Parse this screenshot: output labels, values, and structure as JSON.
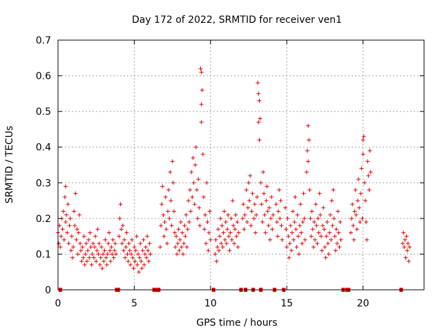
{
  "chart_data": {
    "type": "scatter",
    "title": "Day 172 of 2022, SRMTID for receiver ven1",
    "xlabel": "GPS time / hours",
    "ylabel": "SRMTID / TECUs",
    "xlim": [
      0,
      24
    ],
    "ylim": [
      0,
      0.7
    ],
    "xticks": [
      0,
      5,
      10,
      15,
      20
    ],
    "yticks": [
      0,
      0.1,
      0.2,
      0.3,
      0.4,
      0.5,
      0.6,
      0.7
    ],
    "xtick_labels": [
      "0",
      "5",
      "10",
      "15",
      "20"
    ],
    "ytick_labels": [
      "0",
      "0.1",
      "0.2",
      "0.3",
      "0.4",
      "0.5",
      "0.6",
      "0.7"
    ],
    "grid": true,
    "marker": "plus",
    "color": "#e00000",
    "zero_markers_x": [
      0.15,
      3.85,
      3.95,
      6.3,
      6.45,
      6.6,
      10.2,
      12.0,
      12.3,
      12.8,
      13.3,
      14.2,
      14.8,
      18.7,
      18.95,
      19.05,
      22.5
    ],
    "points": [
      [
        0.0,
        0.16
      ],
      [
        0.05,
        0.13
      ],
      [
        0.1,
        0.18
      ],
      [
        0.15,
        0.12
      ],
      [
        0.2,
        0.15
      ],
      [
        0.25,
        0.2
      ],
      [
        0.3,
        0.17
      ],
      [
        0.35,
        0.22
      ],
      [
        0.4,
        0.14
      ],
      [
        0.45,
        0.26
      ],
      [
        0.5,
        0.29
      ],
      [
        0.5,
        0.19
      ],
      [
        0.55,
        0.21
      ],
      [
        0.6,
        0.16
      ],
      [
        0.65,
        0.24
      ],
      [
        0.7,
        0.13
      ],
      [
        0.75,
        0.18
      ],
      [
        0.8,
        0.2
      ],
      [
        0.85,
        0.11
      ],
      [
        0.9,
        0.15
      ],
      [
        0.95,
        0.09
      ],
      [
        1.0,
        0.12
      ],
      [
        1.05,
        0.22
      ],
      [
        1.1,
        0.18
      ],
      [
        1.15,
        0.27
      ],
      [
        1.2,
        0.14
      ],
      [
        1.25,
        0.17
      ],
      [
        1.3,
        0.1
      ],
      [
        1.35,
        0.16
      ],
      [
        1.4,
        0.21
      ],
      [
        1.45,
        0.13
      ],
      [
        1.5,
        0.11
      ],
      [
        1.55,
        0.08
      ],
      [
        1.6,
        0.12
      ],
      [
        1.65,
        0.09
      ],
      [
        1.7,
        0.15
      ],
      [
        1.75,
        0.07
      ],
      [
        1.8,
        0.1
      ],
      [
        1.85,
        0.13
      ],
      [
        1.9,
        0.08
      ],
      [
        1.95,
        0.11
      ],
      [
        2.0,
        0.14
      ],
      [
        2.05,
        0.09
      ],
      [
        2.1,
        0.16
      ],
      [
        2.15,
        0.12
      ],
      [
        2.2,
        0.07
      ],
      [
        2.25,
        0.1
      ],
      [
        2.3,
        0.13
      ],
      [
        2.35,
        0.09
      ],
      [
        2.4,
        0.12
      ],
      [
        2.45,
        0.15
      ],
      [
        2.5,
        0.08
      ],
      [
        2.55,
        0.11
      ],
      [
        2.6,
        0.17
      ],
      [
        2.65,
        0.1
      ],
      [
        2.7,
        0.13
      ],
      [
        2.75,
        0.07
      ],
      [
        2.8,
        0.09
      ],
      [
        2.85,
        0.12
      ],
      [
        2.9,
        0.06
      ],
      [
        2.95,
        0.1
      ],
      [
        3.0,
        0.08
      ],
      [
        3.05,
        0.11
      ],
      [
        3.1,
        0.14
      ],
      [
        3.15,
        0.09
      ],
      [
        3.2,
        0.07
      ],
      [
        3.25,
        0.1
      ],
      [
        3.3,
        0.13
      ],
      [
        3.35,
        0.16
      ],
      [
        3.4,
        0.11
      ],
      [
        3.45,
        0.08
      ],
      [
        3.5,
        0.12
      ],
      [
        3.55,
        0.1
      ],
      [
        3.6,
        0.14
      ],
      [
        3.65,
        0.09
      ],
      [
        3.7,
        0.11
      ],
      [
        3.75,
        0.13
      ],
      [
        3.8,
        0.1
      ],
      [
        4.0,
        0.15
      ],
      [
        4.05,
        0.2
      ],
      [
        4.1,
        0.24
      ],
      [
        4.15,
        0.17
      ],
      [
        4.2,
        0.13
      ],
      [
        4.25,
        0.18
      ],
      [
        4.3,
        0.11
      ],
      [
        4.35,
        0.14
      ],
      [
        4.4,
        0.09
      ],
      [
        4.45,
        0.12
      ],
      [
        4.5,
        0.16
      ],
      [
        4.55,
        0.1
      ],
      [
        4.6,
        0.08
      ],
      [
        4.65,
        0.13
      ],
      [
        4.7,
        0.11
      ],
      [
        4.75,
        0.07
      ],
      [
        4.8,
        0.1
      ],
      [
        4.85,
        0.14
      ],
      [
        4.9,
        0.09
      ],
      [
        4.95,
        0.06
      ],
      [
        5.0,
        0.12
      ],
      [
        5.05,
        0.08
      ],
      [
        5.1,
        0.11
      ],
      [
        5.15,
        0.15
      ],
      [
        5.2,
        0.07
      ],
      [
        5.25,
        0.1
      ],
      [
        5.3,
        0.05
      ],
      [
        5.35,
        0.09
      ],
      [
        5.4,
        0.13
      ],
      [
        5.45,
        0.08
      ],
      [
        5.5,
        0.06
      ],
      [
        5.55,
        0.11
      ],
      [
        5.6,
        0.14
      ],
      [
        5.65,
        0.07
      ],
      [
        5.7,
        0.1
      ],
      [
        5.75,
        0.12
      ],
      [
        5.8,
        0.09
      ],
      [
        5.85,
        0.15
      ],
      [
        5.9,
        0.11
      ],
      [
        5.95,
        0.08
      ],
      [
        6.0,
        0.13
      ],
      [
        6.05,
        0.1
      ],
      [
        6.7,
        0.12
      ],
      [
        6.75,
        0.18
      ],
      [
        6.8,
        0.24
      ],
      [
        6.85,
        0.29
      ],
      [
        6.9,
        0.21
      ],
      [
        6.95,
        0.15
      ],
      [
        7.0,
        0.19
      ],
      [
        7.05,
        0.26
      ],
      [
        7.1,
        0.17
      ],
      [
        7.15,
        0.13
      ],
      [
        7.2,
        0.22
      ],
      [
        7.25,
        0.28
      ],
      [
        7.3,
        0.2
      ],
      [
        7.35,
        0.33
      ],
      [
        7.4,
        0.25
      ],
      [
        7.45,
        0.18
      ],
      [
        7.5,
        0.36
      ],
      [
        7.55,
        0.3
      ],
      [
        7.6,
        0.22
      ],
      [
        7.65,
        0.16
      ],
      [
        7.7,
        0.12
      ],
      [
        7.75,
        0.15
      ],
      [
        7.8,
        0.1
      ],
      [
        7.85,
        0.13
      ],
      [
        7.9,
        0.17
      ],
      [
        7.95,
        0.11
      ],
      [
        8.0,
        0.14
      ],
      [
        8.05,
        0.19
      ],
      [
        8.1,
        0.12
      ],
      [
        8.15,
        0.16
      ],
      [
        8.2,
        0.1
      ],
      [
        8.25,
        0.13
      ],
      [
        8.3,
        0.18
      ],
      [
        8.35,
        0.15
      ],
      [
        8.4,
        0.21
      ],
      [
        8.45,
        0.12
      ],
      [
        8.5,
        0.17
      ],
      [
        8.55,
        0.25
      ],
      [
        8.6,
        0.19
      ],
      [
        8.65,
        0.28
      ],
      [
        8.7,
        0.22
      ],
      [
        8.75,
        0.33
      ],
      [
        8.8,
        0.26
      ],
      [
        8.85,
        0.37
      ],
      [
        8.9,
        0.3
      ],
      [
        8.95,
        0.24
      ],
      [
        9.0,
        0.35
      ],
      [
        9.05,
        0.4
      ],
      [
        9.1,
        0.28
      ],
      [
        9.15,
        0.2
      ],
      [
        9.2,
        0.31
      ],
      [
        9.25,
        0.23
      ],
      [
        9.3,
        0.18
      ],
      [
        9.35,
        0.62
      ],
      [
        9.4,
        0.61
      ],
      [
        9.45,
        0.56
      ],
      [
        9.4,
        0.52
      ],
      [
        9.4,
        0.47
      ],
      [
        9.5,
        0.38
      ],
      [
        9.55,
        0.26
      ],
      [
        9.6,
        0.17
      ],
      [
        9.65,
        0.21
      ],
      [
        9.7,
        0.13
      ],
      [
        9.75,
        0.3
      ],
      [
        9.8,
        0.19
      ],
      [
        9.85,
        0.11
      ],
      [
        9.9,
        0.16
      ],
      [
        9.95,
        0.22
      ],
      [
        10.0,
        0.14
      ],
      [
        10.3,
        0.1
      ],
      [
        10.35,
        0.14
      ],
      [
        10.4,
        0.08
      ],
      [
        10.45,
        0.12
      ],
      [
        10.5,
        0.17
      ],
      [
        10.55,
        0.11
      ],
      [
        10.6,
        0.15
      ],
      [
        10.65,
        0.2
      ],
      [
        10.7,
        0.13
      ],
      [
        10.75,
        0.18
      ],
      [
        10.8,
        0.12
      ],
      [
        10.85,
        0.16
      ],
      [
        10.9,
        0.22
      ],
      [
        10.95,
        0.14
      ],
      [
        11.0,
        0.19
      ],
      [
        11.05,
        0.13
      ],
      [
        11.1,
        0.17
      ],
      [
        11.15,
        0.21
      ],
      [
        11.2,
        0.15
      ],
      [
        11.25,
        0.11
      ],
      [
        11.3,
        0.16
      ],
      [
        11.35,
        0.2
      ],
      [
        11.4,
        0.14
      ],
      [
        11.45,
        0.25
      ],
      [
        11.5,
        0.18
      ],
      [
        11.55,
        0.13
      ],
      [
        11.6,
        0.17
      ],
      [
        11.65,
        0.21
      ],
      [
        11.7,
        0.15
      ],
      [
        11.75,
        0.19
      ],
      [
        11.8,
        0.12
      ],
      [
        11.85,
        0.16
      ],
      [
        12.1,
        0.2
      ],
      [
        12.15,
        0.24
      ],
      [
        12.2,
        0.17
      ],
      [
        12.25,
        0.21
      ],
      [
        12.35,
        0.28
      ],
      [
        12.4,
        0.19
      ],
      [
        12.45,
        0.23
      ],
      [
        12.5,
        0.3
      ],
      [
        12.55,
        0.25
      ],
      [
        12.6,
        0.32
      ],
      [
        12.65,
        0.18
      ],
      [
        12.7,
        0.22
      ],
      [
        12.75,
        0.27
      ],
      [
        12.85,
        0.2
      ],
      [
        12.9,
        0.24
      ],
      [
        12.95,
        0.16
      ],
      [
        13.0,
        0.21
      ],
      [
        13.05,
        0.26
      ],
      [
        13.1,
        0.58
      ],
      [
        13.15,
        0.55
      ],
      [
        13.2,
        0.53
      ],
      [
        13.25,
        0.48
      ],
      [
        13.15,
        0.47
      ],
      [
        13.2,
        0.42
      ],
      [
        13.3,
        0.3
      ],
      [
        13.35,
        0.24
      ],
      [
        13.4,
        0.19
      ],
      [
        13.45,
        0.33
      ],
      [
        13.5,
        0.27
      ],
      [
        13.55,
        0.21
      ],
      [
        13.6,
        0.16
      ],
      [
        13.65,
        0.25
      ],
      [
        13.7,
        0.29
      ],
      [
        13.75,
        0.22
      ],
      [
        13.8,
        0.18
      ],
      [
        13.85,
        0.23
      ],
      [
        13.9,
        0.14
      ],
      [
        13.95,
        0.2
      ],
      [
        14.0,
        0.26
      ],
      [
        14.05,
        0.17
      ],
      [
        14.1,
        0.21
      ],
      [
        14.3,
        0.24
      ],
      [
        14.35,
        0.19
      ],
      [
        14.4,
        0.15
      ],
      [
        14.45,
        0.22
      ],
      [
        14.5,
        0.28
      ],
      [
        14.55,
        0.2
      ],
      [
        14.6,
        0.25
      ],
      [
        14.65,
        0.18
      ],
      [
        14.7,
        0.14
      ],
      [
        14.9,
        0.23
      ],
      [
        14.95,
        0.17
      ],
      [
        15.0,
        0.12
      ],
      [
        15.05,
        0.2
      ],
      [
        15.1,
        0.15
      ],
      [
        15.15,
        0.09
      ],
      [
        15.2,
        0.13
      ],
      [
        15.25,
        0.18
      ],
      [
        15.3,
        0.11
      ],
      [
        15.35,
        0.16
      ],
      [
        15.4,
        0.22
      ],
      [
        15.45,
        0.14
      ],
      [
        15.5,
        0.19
      ],
      [
        15.55,
        0.26
      ],
      [
        15.6,
        0.17
      ],
      [
        15.65,
        0.12
      ],
      [
        15.7,
        0.21
      ],
      [
        15.75,
        0.15
      ],
      [
        15.8,
        0.1
      ],
      [
        15.85,
        0.18
      ],
      [
        15.9,
        0.24
      ],
      [
        15.95,
        0.16
      ],
      [
        16.0,
        0.13
      ],
      [
        16.05,
        0.19
      ],
      [
        16.1,
        0.27
      ],
      [
        16.15,
        0.2
      ],
      [
        16.2,
        0.14
      ],
      [
        16.3,
        0.33
      ],
      [
        16.35,
        0.39
      ],
      [
        16.4,
        0.46
      ],
      [
        16.45,
        0.42
      ],
      [
        16.4,
        0.36
      ],
      [
        16.5,
        0.28
      ],
      [
        16.55,
        0.2
      ],
      [
        16.6,
        0.15
      ],
      [
        16.65,
        0.22
      ],
      [
        16.7,
        0.17
      ],
      [
        16.75,
        0.12
      ],
      [
        16.8,
        0.19
      ],
      [
        16.85,
        0.14
      ],
      [
        16.9,
        0.24
      ],
      [
        16.95,
        0.18
      ],
      [
        17.0,
        0.13
      ],
      [
        17.05,
        0.2
      ],
      [
        17.1,
        0.16
      ],
      [
        17.15,
        0.27
      ],
      [
        17.2,
        0.21
      ],
      [
        17.25,
        0.15
      ],
      [
        17.3,
        0.11
      ],
      [
        17.35,
        0.18
      ],
      [
        17.4,
        0.23
      ],
      [
        17.45,
        0.17
      ],
      [
        17.5,
        0.12
      ],
      [
        17.55,
        0.09
      ],
      [
        17.6,
        0.15
      ],
      [
        17.65,
        0.19
      ],
      [
        17.7,
        0.13
      ],
      [
        17.75,
        0.1
      ],
      [
        17.8,
        0.16
      ],
      [
        17.85,
        0.21
      ],
      [
        17.9,
        0.14
      ],
      [
        17.95,
        0.25
      ],
      [
        18.0,
        0.18
      ],
      [
        18.05,
        0.28
      ],
      [
        18.1,
        0.2
      ],
      [
        18.15,
        0.15
      ],
      [
        18.2,
        0.11
      ],
      [
        18.25,
        0.17
      ],
      [
        18.3,
        0.13
      ],
      [
        18.35,
        0.22
      ],
      [
        18.4,
        0.16
      ],
      [
        18.45,
        0.12
      ],
      [
        18.5,
        0.19
      ],
      [
        18.55,
        0.14
      ],
      [
        19.2,
        0.16
      ],
      [
        19.25,
        0.2
      ],
      [
        19.3,
        0.24
      ],
      [
        19.35,
        0.18
      ],
      [
        19.4,
        0.14
      ],
      [
        19.45,
        0.22
      ],
      [
        19.5,
        0.28
      ],
      [
        19.55,
        0.21
      ],
      [
        19.6,
        0.17
      ],
      [
        19.65,
        0.25
      ],
      [
        19.7,
        0.31
      ],
      [
        19.75,
        0.23
      ],
      [
        19.8,
        0.19
      ],
      [
        19.85,
        0.27
      ],
      [
        19.9,
        0.34
      ],
      [
        19.95,
        0.2
      ],
      [
        20.0,
        0.42
      ],
      [
        20.05,
        0.43
      ],
      [
        20.0,
        0.38
      ],
      [
        20.1,
        0.3
      ],
      [
        20.15,
        0.25
      ],
      [
        20.2,
        0.19
      ],
      [
        20.25,
        0.14
      ],
      [
        20.3,
        0.36
      ],
      [
        20.35,
        0.32
      ],
      [
        20.4,
        0.28
      ],
      [
        20.45,
        0.39
      ],
      [
        20.5,
        0.33
      ],
      [
        22.6,
        0.13
      ],
      [
        22.65,
        0.16
      ],
      [
        22.7,
        0.12
      ],
      [
        22.75,
        0.14
      ],
      [
        22.8,
        0.09
      ],
      [
        22.85,
        0.15
      ],
      [
        22.9,
        0.11
      ],
      [
        22.95,
        0.13
      ],
      [
        23.0,
        0.08
      ],
      [
        23.05,
        0.12
      ]
    ]
  }
}
